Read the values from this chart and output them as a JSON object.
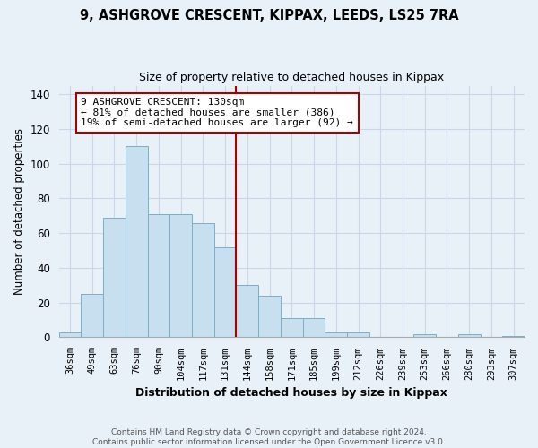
{
  "title_line1": "9, ASHGROVE CRESCENT, KIPPAX, LEEDS, LS25 7RA",
  "title_line2": "Size of property relative to detached houses in Kippax",
  "xlabel": "Distribution of detached houses by size in Kippax",
  "ylabel": "Number of detached properties",
  "categories": [
    "36sqm",
    "49sqm",
    "63sqm",
    "76sqm",
    "90sqm",
    "104sqm",
    "117sqm",
    "131sqm",
    "144sqm",
    "158sqm",
    "171sqm",
    "185sqm",
    "199sqm",
    "212sqm",
    "226sqm",
    "239sqm",
    "253sqm",
    "266sqm",
    "280sqm",
    "293sqm",
    "307sqm"
  ],
  "values": [
    3,
    25,
    69,
    110,
    71,
    71,
    66,
    52,
    30,
    24,
    11,
    11,
    3,
    3,
    0,
    0,
    2,
    0,
    2,
    0,
    1
  ],
  "bar_color": "#c8dff0",
  "bar_edge_color": "#7aafc8",
  "vline_color": "#aa0000",
  "annotation_text": "9 ASHGROVE CRESCENT: 130sqm\n← 81% of detached houses are smaller (386)\n19% of semi-detached houses are larger (92) →",
  "annotation_box_edgecolor": "#aa0000",
  "annotation_box_facecolor": "#ffffff",
  "ylim": [
    0,
    145
  ],
  "yticks": [
    0,
    20,
    40,
    60,
    80,
    100,
    120,
    140
  ],
  "grid_color": "#c8d8e8",
  "footer_text": "Contains HM Land Registry data © Crown copyright and database right 2024.\nContains public sector information licensed under the Open Government Licence v3.0.",
  "background_color": "#e8f0f8"
}
